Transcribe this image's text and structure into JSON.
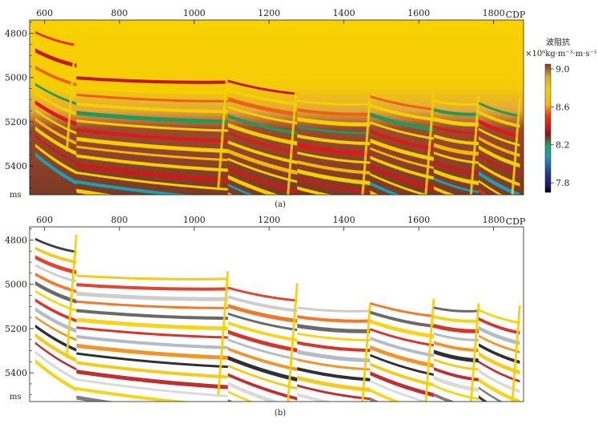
{
  "figure": {
    "panel_a": {
      "caption": "(a)",
      "x_axis_label": "CDP",
      "y_axis_unit": "ms",
      "x_ticks": [
        "600",
        "800",
        "1000",
        "1200",
        "1400",
        "1600",
        "1800"
      ],
      "y_ticks": [
        "4800",
        "5000",
        "5200",
        "5400"
      ],
      "colorbar": {
        "title": "波阻抗",
        "unit": "×10⁶kg·m⁻³·m·s⁻¹",
        "ticks": [
          "9.0",
          "8.6",
          "8.2",
          "7.8"
        ],
        "colors": [
          "#1a1a1a",
          "#203a9a",
          "#1aa0b4",
          "#20a060",
          "#c01818",
          "#ef2a1a",
          "#f4b60a",
          "#f5d000",
          "#e8d020",
          "#c89030",
          "#7a3a24"
        ]
      }
    },
    "panel_b": {
      "caption": "(b)",
      "x_axis_label": "CDP",
      "y_axis_unit": "ms",
      "x_ticks": [
        "600",
        "800",
        "1000",
        "1200",
        "1400",
        "1600",
        "1800"
      ],
      "y_ticks": [
        "4800",
        "5000",
        "5200",
        "5400"
      ]
    }
  },
  "chart_data": [
    {
      "type": "heatmap",
      "panel": "a",
      "title": "",
      "xlabel": "CDP",
      "ylabel": "ms",
      "xlim": [
        560,
        1880
      ],
      "ylim": [
        5530,
        4740
      ],
      "x_ticks": [
        600,
        800,
        1000,
        1200,
        1400,
        1600,
        1800
      ],
      "y_ticks": [
        4800,
        5000,
        5200,
        5400
      ],
      "colorbar_range": [
        7.7,
        9.05
      ],
      "colorbar_ticks": [
        9.0,
        8.6,
        8.2,
        7.8
      ],
      "fault_blocks": [
        {
          "x_start": 575,
          "x_end": 685,
          "top_ms": 4790
        },
        {
          "x_start": 685,
          "x_end": 1090,
          "top_ms": 4955
        },
        {
          "x_start": 1090,
          "x_end": 1275,
          "top_ms": 5010
        },
        {
          "x_start": 1275,
          "x_end": 1470,
          "top_ms": 5100
        },
        {
          "x_start": 1470,
          "x_end": 1640,
          "top_ms": 5080
        },
        {
          "x_start": 1640,
          "x_end": 1760,
          "top_ms": 5100
        },
        {
          "x_start": 1760,
          "x_end": 1870,
          "top_ms": 5110
        }
      ]
    },
    {
      "type": "heatmap",
      "panel": "b",
      "title": "",
      "xlabel": "CDP",
      "ylabel": "ms",
      "xlim": [
        560,
        1880
      ],
      "ylim": [
        5530,
        4740
      ],
      "x_ticks": [
        600,
        800,
        1000,
        1200,
        1400,
        1600,
        1800
      ],
      "y_ticks": [
        4800,
        5000,
        5200,
        5400
      ],
      "fault_blocks": [
        {
          "x_start": 575,
          "x_end": 685,
          "top_ms": 4790
        },
        {
          "x_start": 685,
          "x_end": 1090,
          "top_ms": 4955
        },
        {
          "x_start": 1090,
          "x_end": 1275,
          "top_ms": 5010
        },
        {
          "x_start": 1275,
          "x_end": 1470,
          "top_ms": 5100
        },
        {
          "x_start": 1470,
          "x_end": 1640,
          "top_ms": 5080
        },
        {
          "x_start": 1640,
          "x_end": 1760,
          "top_ms": 5100
        },
        {
          "x_start": 1760,
          "x_end": 1870,
          "top_ms": 5110
        }
      ]
    }
  ]
}
